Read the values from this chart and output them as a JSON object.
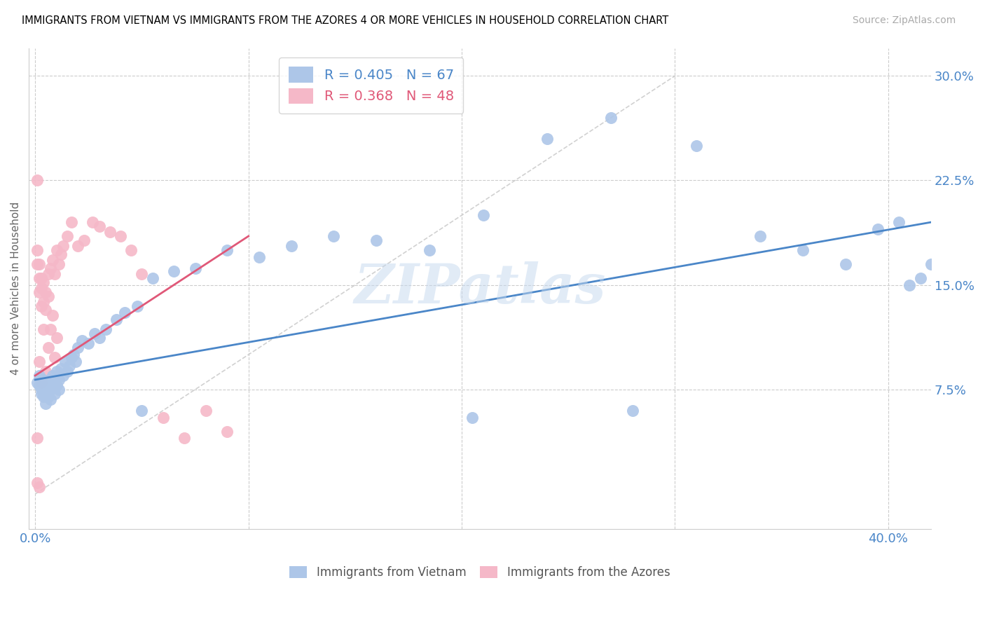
{
  "title": "IMMIGRANTS FROM VIETNAM VS IMMIGRANTS FROM THE AZORES 4 OR MORE VEHICLES IN HOUSEHOLD CORRELATION CHART",
  "source": "Source: ZipAtlas.com",
  "ylabel": "4 or more Vehicles in Household",
  "vietnam_color": "#adc6e8",
  "azores_color": "#f5b8c8",
  "vietnam_line_color": "#4a86c8",
  "azores_line_color": "#e05878",
  "diagonal_color": "#cccccc",
  "watermark": "ZIPatlas",
  "xlim": [
    -0.003,
    0.42
  ],
  "ylim": [
    -0.025,
    0.32
  ],
  "ytick_vals": [
    0.075,
    0.15,
    0.225,
    0.3
  ],
  "ytick_labels": [
    "7.5%",
    "15.0%",
    "22.5%",
    "30.0%"
  ],
  "xtick_vals": [
    0.0,
    0.1,
    0.2,
    0.3,
    0.4
  ],
  "xtick_labels": [
    "0.0%",
    "",
    "",
    "",
    "40.0%"
  ],
  "vietnam_R": "0.405",
  "vietnam_N": "67",
  "azores_R": "0.368",
  "azores_N": "48",
  "vietnam_x": [
    0.001,
    0.002,
    0.002,
    0.003,
    0.003,
    0.003,
    0.004,
    0.004,
    0.004,
    0.005,
    0.005,
    0.005,
    0.006,
    0.006,
    0.006,
    0.007,
    0.007,
    0.007,
    0.008,
    0.008,
    0.009,
    0.009,
    0.01,
    0.01,
    0.011,
    0.011,
    0.012,
    0.013,
    0.014,
    0.015,
    0.016,
    0.017,
    0.018,
    0.019,
    0.02,
    0.022,
    0.025,
    0.028,
    0.03,
    0.033,
    0.038,
    0.042,
    0.048,
    0.055,
    0.065,
    0.075,
    0.09,
    0.105,
    0.12,
    0.14,
    0.16,
    0.185,
    0.21,
    0.24,
    0.27,
    0.31,
    0.34,
    0.36,
    0.38,
    0.395,
    0.405,
    0.41,
    0.415,
    0.42,
    0.205,
    0.28,
    0.05
  ],
  "vietnam_y": [
    0.08,
    0.085,
    0.078,
    0.075,
    0.082,
    0.072,
    0.076,
    0.082,
    0.07,
    0.078,
    0.072,
    0.065,
    0.08,
    0.075,
    0.07,
    0.082,
    0.075,
    0.068,
    0.085,
    0.078,
    0.08,
    0.072,
    0.088,
    0.078,
    0.082,
    0.075,
    0.09,
    0.085,
    0.095,
    0.088,
    0.092,
    0.098,
    0.1,
    0.095,
    0.105,
    0.11,
    0.108,
    0.115,
    0.112,
    0.118,
    0.125,
    0.13,
    0.135,
    0.155,
    0.16,
    0.162,
    0.175,
    0.17,
    0.178,
    0.185,
    0.182,
    0.175,
    0.2,
    0.255,
    0.27,
    0.25,
    0.185,
    0.175,
    0.165,
    0.19,
    0.195,
    0.15,
    0.155,
    0.165,
    0.055,
    0.06,
    0.06
  ],
  "azores_x": [
    0.001,
    0.001,
    0.001,
    0.001,
    0.002,
    0.002,
    0.002,
    0.002,
    0.003,
    0.003,
    0.003,
    0.003,
    0.004,
    0.004,
    0.004,
    0.005,
    0.005,
    0.005,
    0.006,
    0.006,
    0.006,
    0.007,
    0.007,
    0.008,
    0.008,
    0.009,
    0.009,
    0.01,
    0.01,
    0.011,
    0.012,
    0.013,
    0.015,
    0.017,
    0.02,
    0.023,
    0.027,
    0.03,
    0.035,
    0.04,
    0.045,
    0.05,
    0.06,
    0.07,
    0.08,
    0.09,
    0.001,
    0.002
  ],
  "azores_y": [
    0.225,
    0.175,
    0.165,
    0.04,
    0.165,
    0.155,
    0.145,
    0.095,
    0.155,
    0.148,
    0.135,
    0.08,
    0.152,
    0.138,
    0.118,
    0.145,
    0.132,
    0.088,
    0.158,
    0.142,
    0.105,
    0.162,
    0.118,
    0.168,
    0.128,
    0.158,
    0.098,
    0.175,
    0.112,
    0.165,
    0.172,
    0.178,
    0.185,
    0.195,
    0.178,
    0.182,
    0.195,
    0.192,
    0.188,
    0.185,
    0.175,
    0.158,
    0.055,
    0.04,
    0.06,
    0.045,
    0.008,
    0.005
  ],
  "vietnam_line_x": [
    0.0,
    0.42
  ],
  "vietnam_line_y": [
    0.082,
    0.195
  ],
  "azores_line_x": [
    0.0,
    0.1
  ],
  "azores_line_y": [
    0.085,
    0.185
  ]
}
